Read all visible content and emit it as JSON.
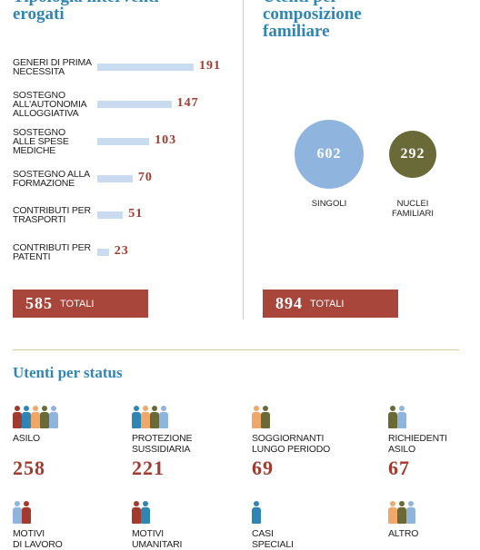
{
  "chart_data": [
    {
      "type": "bar",
      "title": "Tipologia interventi\nerogati",
      "categories": [
        "GENERI DI PRIMA\nNECESSITA",
        "SOSTEGNO\nALL'AUTONOMIA\nALLOGGIATIVA",
        "SOSTEGNO\nALLE SPESE\nMEDICHE",
        "SOSTEGNO ALLA\nFORMAZIONE",
        "CONTRIBUTI PER\nTRASPORTI",
        "CONTRIBUTI PER\nPATENTI"
      ],
      "values": [
        191,
        147,
        103,
        70,
        51,
        23
      ],
      "color": "#c9dcef",
      "total": 585,
      "total_label": "TOTALI"
    },
    {
      "type": "bubble",
      "title": "Utenti per\ncomposizione\nfamiliare",
      "categories": [
        "SINGOLI",
        "NUCLEI\nFAMILIARI"
      ],
      "values": [
        602,
        292
      ],
      "colors": [
        "#8fb4de",
        "#6a6a38"
      ],
      "total": 894,
      "total_label": "TOTALI"
    },
    {
      "type": "status",
      "title": "Utenti per status",
      "categories": [
        "ASILO",
        "PROTEZIONE\nSUSSIDIARIA",
        "SOGGIORNANTI\nLUNGO PERIODO",
        "RICHIEDENTI\nASILO",
        "MOTIVI\nDI LAVORO",
        "MOTIVI\nUMANITARI",
        "CASI\nSPECIALI",
        "ALTRO"
      ],
      "values": [
        258,
        221,
        69,
        67,
        null,
        null,
        null,
        null
      ]
    }
  ]
}
